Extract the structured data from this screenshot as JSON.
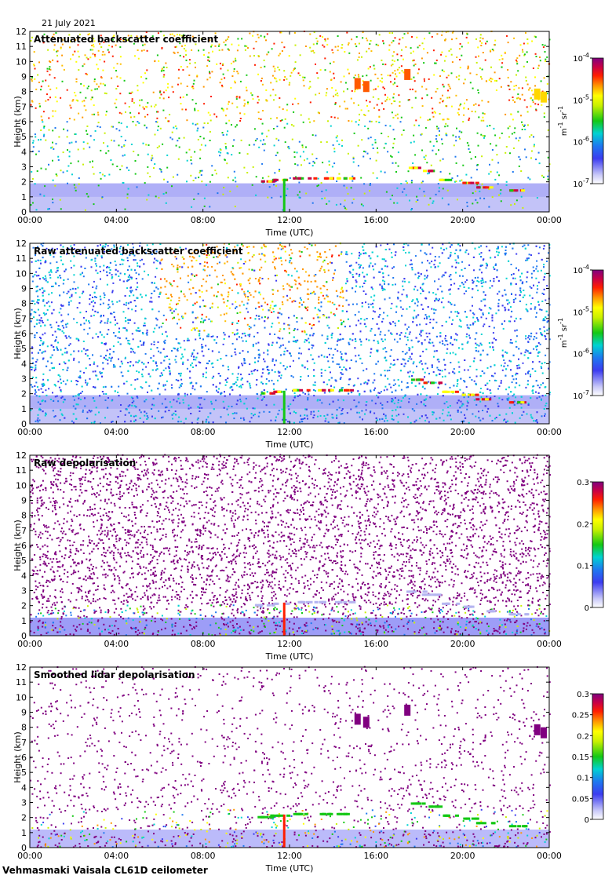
{
  "date": "21 July 2021",
  "footer": "Vehmasmaki Vaisala CL61D ceilometer",
  "chart_data": [
    {
      "type": "heatmap",
      "title": "Attenuated backscatter coefficient",
      "xlabel": "Time (UTC)",
      "ylabel": "Height (km)",
      "xticks": [
        "00:00",
        "04:00",
        "08:00",
        "12:00",
        "16:00",
        "20:00",
        "00:00"
      ],
      "yticks": [
        "0",
        "1",
        "2",
        "3",
        "4",
        "5",
        "6",
        "7",
        "8",
        "9",
        "10",
        "11",
        "12"
      ],
      "ylim": [
        0,
        12
      ],
      "colorbar": {
        "scale": "log",
        "ticks": [
          {
            "base": "10",
            "exp": "-4",
            "value": 0.0001
          },
          {
            "base": "10",
            "exp": "-5",
            "value": 1e-05
          },
          {
            "base": "10",
            "exp": "-6",
            "value": 1e-06
          },
          {
            "base": "10",
            "exp": "-7",
            "value": 1e-07
          }
        ],
        "unit_parts": [
          "m",
          "-1",
          " sr",
          "-1"
        ]
      },
      "cloud_layer_km": [
        [
          11.2,
          2.1
        ],
        [
          12,
          2.2
        ],
        [
          14.5,
          2.2
        ],
        [
          17.8,
          2.9
        ],
        [
          19.5,
          2.0
        ],
        [
          21,
          1.6
        ]
      ]
    },
    {
      "type": "heatmap",
      "title": "Raw attenuated backscatter coefficient",
      "xlabel": "Time (UTC)",
      "ylabel": "Height (km)",
      "xticks": [
        "00:00",
        "04:00",
        "08:00",
        "12:00",
        "16:00",
        "20:00",
        "00:00"
      ],
      "yticks": [
        "0",
        "1",
        "2",
        "3",
        "4",
        "5",
        "6",
        "7",
        "8",
        "9",
        "10",
        "11",
        "12"
      ],
      "ylim": [
        0,
        12
      ],
      "colorbar": {
        "scale": "log",
        "ticks": [
          {
            "base": "10",
            "exp": "-4",
            "value": 0.0001
          },
          {
            "base": "10",
            "exp": "-5",
            "value": 1e-05
          },
          {
            "base": "10",
            "exp": "-6",
            "value": 1e-06
          },
          {
            "base": "10",
            "exp": "-7",
            "value": 1e-07
          }
        ],
        "unit_parts": [
          "m",
          "-1",
          " sr",
          "-1"
        ]
      }
    },
    {
      "type": "heatmap",
      "title": "Raw depolarisation",
      "xlabel": "Time (UTC)",
      "ylabel": "Height (km)",
      "xticks": [
        "00:00",
        "04:00",
        "08:00",
        "12:00",
        "16:00",
        "20:00",
        "00:00"
      ],
      "yticks": [
        "0",
        "1",
        "2",
        "3",
        "4",
        "5",
        "6",
        "7",
        "8",
        "9",
        "10",
        "11",
        "12"
      ],
      "ylim": [
        0,
        12
      ],
      "colorbar": {
        "scale": "linear",
        "range": [
          0,
          0.3
        ],
        "ticks": [
          "0.3",
          "0.2",
          "0.1",
          "0"
        ]
      }
    },
    {
      "type": "heatmap",
      "title": "Smoothed lidar depolarisation",
      "xlabel": "Time (UTC)",
      "ylabel": "Height (km)",
      "xticks": [
        "00:00",
        "04:00",
        "08:00",
        "12:00",
        "16:00",
        "20:00",
        "00:00"
      ],
      "yticks": [
        "0",
        "1",
        "2",
        "3",
        "4",
        "5",
        "6",
        "7",
        "8",
        "9",
        "10",
        "11",
        "12"
      ],
      "ylim": [
        0,
        12
      ],
      "colorbar": {
        "scale": "linear",
        "range": [
          0,
          0.3
        ],
        "ticks": [
          "0.3",
          "0.25",
          "0.2",
          "0.15",
          "0.1",
          "0.05",
          "0"
        ]
      }
    }
  ]
}
